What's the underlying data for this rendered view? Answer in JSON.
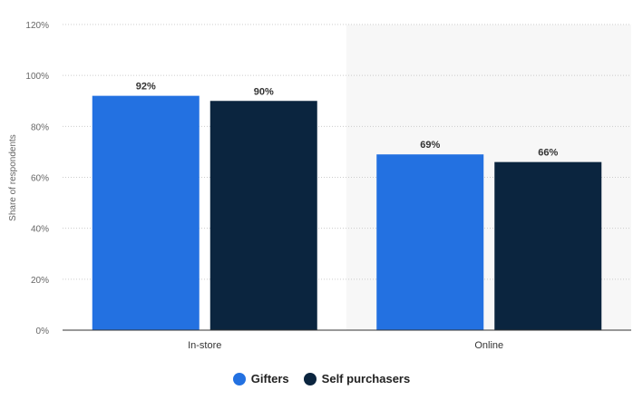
{
  "chart_data": {
    "type": "bar",
    "categories": [
      "In-store",
      "Online"
    ],
    "series": [
      {
        "name": "Gifters",
        "values": [
          92,
          69
        ],
        "labels": [
          "92%",
          "69%"
        ],
        "color": "#2371e1"
      },
      {
        "name": "Self purchasers",
        "values": [
          90,
          66
        ],
        "labels": [
          "90%",
          "66%"
        ],
        "color": "#0b253f"
      }
    ],
    "ylabel": "Share of respondents",
    "xlabel": "",
    "ylim": [
      0,
      120
    ],
    "yticks": [
      "0%",
      "20%",
      "40%",
      "60%",
      "80%",
      "100%",
      "120%"
    ],
    "grid": true,
    "legend": "bottom-center",
    "highlighted_category": "Online"
  },
  "legend": {
    "items": [
      {
        "label": "Gifters",
        "color": "#2371e1"
      },
      {
        "label": "Self purchasers",
        "color": "#0b253f"
      }
    ]
  }
}
